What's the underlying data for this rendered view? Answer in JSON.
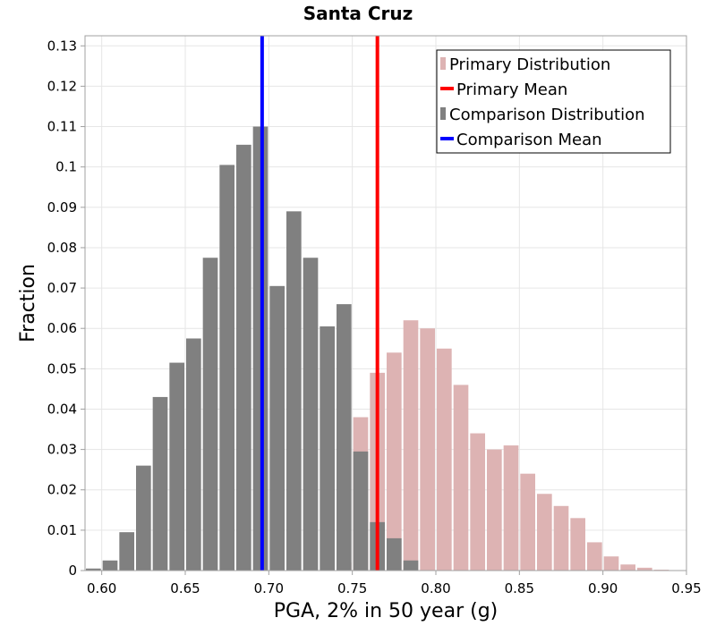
{
  "chart_data": {
    "type": "bar",
    "title": "Santa Cruz",
    "xlabel": "PGA, 2% in 50 year (g)",
    "ylabel": "Fraction",
    "xlim": [
      0.59,
      0.95
    ],
    "ylim": [
      0,
      0.1325
    ],
    "bin_width": 0.01,
    "x_ticks": [
      "0.60",
      "0.65",
      "0.70",
      "0.75",
      "0.80",
      "0.85",
      "0.90",
      "0.95"
    ],
    "x_tick_values": [
      0.6,
      0.65,
      0.7,
      0.75,
      0.8,
      0.85,
      0.9,
      0.95
    ],
    "y_ticks": [
      "0",
      "0.01",
      "0.02",
      "0.03",
      "0.04",
      "0.05",
      "0.06",
      "0.07",
      "0.08",
      "0.09",
      "0.1",
      "0.11",
      "0.12",
      "0.13"
    ],
    "y_tick_values": [
      0,
      0.01,
      0.02,
      0.03,
      0.04,
      0.05,
      0.06,
      0.07,
      0.08,
      0.09,
      0.1,
      0.11,
      0.12,
      0.13
    ],
    "grid": true,
    "series": [
      {
        "name": "Primary Distribution",
        "kind": "bar",
        "color": "#ddb3b3",
        "x": [
          0.745,
          0.755,
          0.765,
          0.775,
          0.785,
          0.795,
          0.805,
          0.815,
          0.825,
          0.835,
          0.845,
          0.855,
          0.865,
          0.875,
          0.885,
          0.895,
          0.905,
          0.915,
          0.925,
          0.935
        ],
        "values": [
          0.002,
          0.038,
          0.049,
          0.054,
          0.062,
          0.06,
          0.055,
          0.046,
          0.034,
          0.03,
          0.031,
          0.024,
          0.019,
          0.016,
          0.013,
          0.007,
          0.0035,
          0.0015,
          0.0007,
          0.0002
        ]
      },
      {
        "name": "Comparison Distribution",
        "kind": "bar",
        "color": "#808080",
        "x": [
          0.595,
          0.605,
          0.615,
          0.625,
          0.635,
          0.645,
          0.655,
          0.665,
          0.675,
          0.685,
          0.695,
          0.705,
          0.715,
          0.725,
          0.735,
          0.745,
          0.755,
          0.765,
          0.775,
          0.785
        ],
        "values": [
          0.0005,
          0.0025,
          0.0095,
          0.026,
          0.043,
          0.0515,
          0.0575,
          0.0775,
          0.1005,
          0.1055,
          0.11,
          0.0705,
          0.089,
          0.0775,
          0.0605,
          0.066,
          0.0295,
          0.012,
          0.008,
          0.0025
        ]
      },
      {
        "name": "Primary Mean",
        "kind": "vline",
        "color": "#ff0000",
        "value": 0.765
      },
      {
        "name": "Comparison Mean",
        "kind": "vline",
        "color": "#0000ff",
        "value": 0.696
      }
    ],
    "legend": {
      "position": "top-right",
      "entries": [
        "Primary Distribution",
        "Primary Mean",
        "Comparison Distribution",
        "Comparison Mean"
      ]
    }
  }
}
